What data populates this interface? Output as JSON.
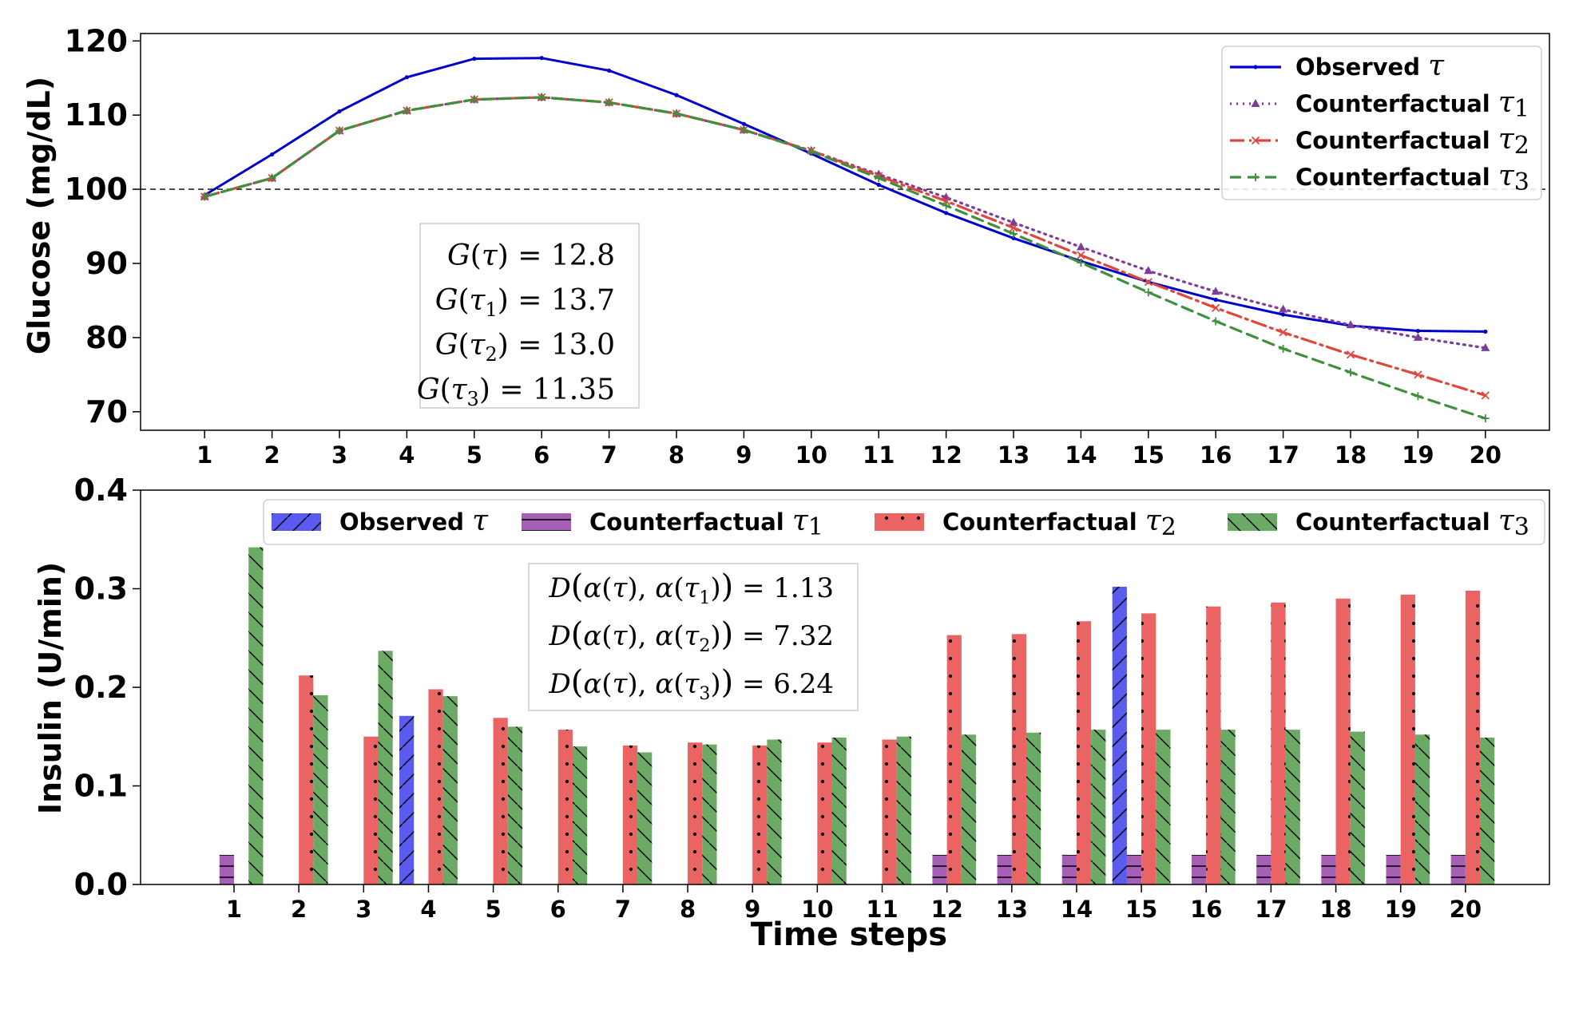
{
  "chart_data": [
    {
      "type": "line",
      "title": "",
      "xlabel": "",
      "ylabel": "Glucose (mg/dL)",
      "x": [
        1,
        2,
        3,
        4,
        5,
        6,
        7,
        8,
        9,
        10,
        11,
        12,
        13,
        14,
        15,
        16,
        17,
        18,
        19,
        20
      ],
      "xlim": [
        0.05,
        20.95
      ],
      "ylim": [
        67.5,
        121
      ],
      "yticks": [
        70,
        80,
        90,
        100,
        110,
        120
      ],
      "reference_line": {
        "y": 100,
        "style": "dashed",
        "color": "#000000"
      },
      "legend_position": "top-right",
      "series": [
        {
          "name": "Observed",
          "symbol": "τ",
          "subscript": "",
          "color": "#0000cc",
          "style": "solid",
          "marker": "dot",
          "values": [
            99.2,
            104.7,
            110.5,
            115.1,
            117.6,
            117.7,
            116.0,
            112.7,
            108.8,
            104.8,
            100.6,
            96.8,
            93.4,
            90.3,
            87.5,
            85.1,
            83.1,
            81.6,
            80.9,
            80.8
          ]
        },
        {
          "name": "Counterfactual",
          "symbol": "τ",
          "subscript": "1",
          "color": "#7d3c98",
          "style": "dotted",
          "marker": "triangle",
          "values": [
            99.0,
            101.5,
            107.9,
            110.6,
            112.1,
            112.4,
            111.7,
            110.2,
            108.0,
            105.2,
            102.0,
            98.9,
            95.5,
            92.2,
            89.0,
            86.2,
            83.8,
            81.7,
            80.0,
            78.6
          ]
        },
        {
          "name": "Counterfactual",
          "symbol": "τ",
          "subscript": "2",
          "color": "#e0473c",
          "style": "dashdot",
          "marker": "x",
          "values": [
            99.0,
            101.5,
            107.9,
            110.6,
            112.1,
            112.4,
            111.7,
            110.2,
            108.0,
            105.2,
            101.8,
            98.4,
            94.8,
            91.1,
            87.5,
            84.0,
            80.7,
            77.7,
            75.0,
            72.2
          ]
        },
        {
          "name": "Counterfactual",
          "symbol": "τ",
          "subscript": "3",
          "color": "#3f8f3f",
          "style": "dashed",
          "marker": "plus",
          "values": [
            99.0,
            101.5,
            107.9,
            110.6,
            112.1,
            112.4,
            111.7,
            110.2,
            108.0,
            105.1,
            101.5,
            97.8,
            94.0,
            90.1,
            86.1,
            82.2,
            78.5,
            75.3,
            72.1,
            69.1
          ]
        }
      ],
      "annotation": {
        "lines": [
          {
            "fn": "G",
            "arg": "τ",
            "sub": "",
            "value": "12.8"
          },
          {
            "fn": "G",
            "arg": "τ",
            "sub": "1",
            "value": "13.7"
          },
          {
            "fn": "G",
            "arg": "τ",
            "sub": "2",
            "value": "13.0"
          },
          {
            "fn": "G",
            "arg": "τ",
            "sub": "3",
            "value": "11.35"
          }
        ]
      }
    },
    {
      "type": "bar",
      "title": "",
      "xlabel": "Time steps",
      "ylabel": "Insulin (U/min)",
      "categories": [
        "1",
        "2",
        "3",
        "4",
        "5",
        "6",
        "7",
        "8",
        "9",
        "10",
        "11",
        "12",
        "13",
        "14",
        "15",
        "16",
        "17",
        "18",
        "19",
        "20"
      ],
      "ylim": [
        0,
        0.4
      ],
      "yticks": [
        0.0,
        0.1,
        0.2,
        0.3,
        0.4
      ],
      "legend_position": "top",
      "series": [
        {
          "name": "Observed",
          "symbol": "τ",
          "subscript": "",
          "color": "#5a5af0",
          "hatch": "/",
          "values": [
            0,
            0,
            0,
            0.171,
            0,
            0,
            0,
            0,
            0,
            0,
            0,
            0,
            0,
            0,
            0.302,
            0,
            0,
            0,
            0,
            0
          ]
        },
        {
          "name": "Counterfactual",
          "symbol": "τ",
          "subscript": "1",
          "color": "#a55fb5",
          "hatch": "-",
          "values": [
            0.03,
            0,
            0,
            0,
            0,
            0,
            0,
            0,
            0,
            0,
            0,
            0.03,
            0.03,
            0.03,
            0.03,
            0.03,
            0.03,
            0.03,
            0.03,
            0.03
          ]
        },
        {
          "name": "Counterfactual",
          "symbol": "τ",
          "subscript": "2",
          "color": "#eb6464",
          "hatch": ".",
          "values": [
            0,
            0.212,
            0.15,
            0.198,
            0.169,
            0.157,
            0.141,
            0.144,
            0.141,
            0.144,
            0.147,
            0.253,
            0.254,
            0.267,
            0.275,
            0.282,
            0.286,
            0.29,
            0.294,
            0.298
          ]
        },
        {
          "name": "Counterfactual",
          "symbol": "τ",
          "subscript": "3",
          "color": "#6aaa64",
          "hatch": "\\",
          "values": [
            0.342,
            0.192,
            0.237,
            0.191,
            0.16,
            0.14,
            0.134,
            0.142,
            0.147,
            0.149,
            0.15,
            0.152,
            0.154,
            0.157,
            0.157,
            0.157,
            0.157,
            0.155,
            0.152,
            0.149
          ]
        }
      ],
      "annotation": {
        "lines": [
          {
            "fn": "D",
            "sub": "1",
            "value": "1.13"
          },
          {
            "fn": "D",
            "sub": "2",
            "value": "7.32"
          },
          {
            "fn": "D",
            "sub": "3",
            "value": "6.24"
          }
        ]
      }
    }
  ]
}
